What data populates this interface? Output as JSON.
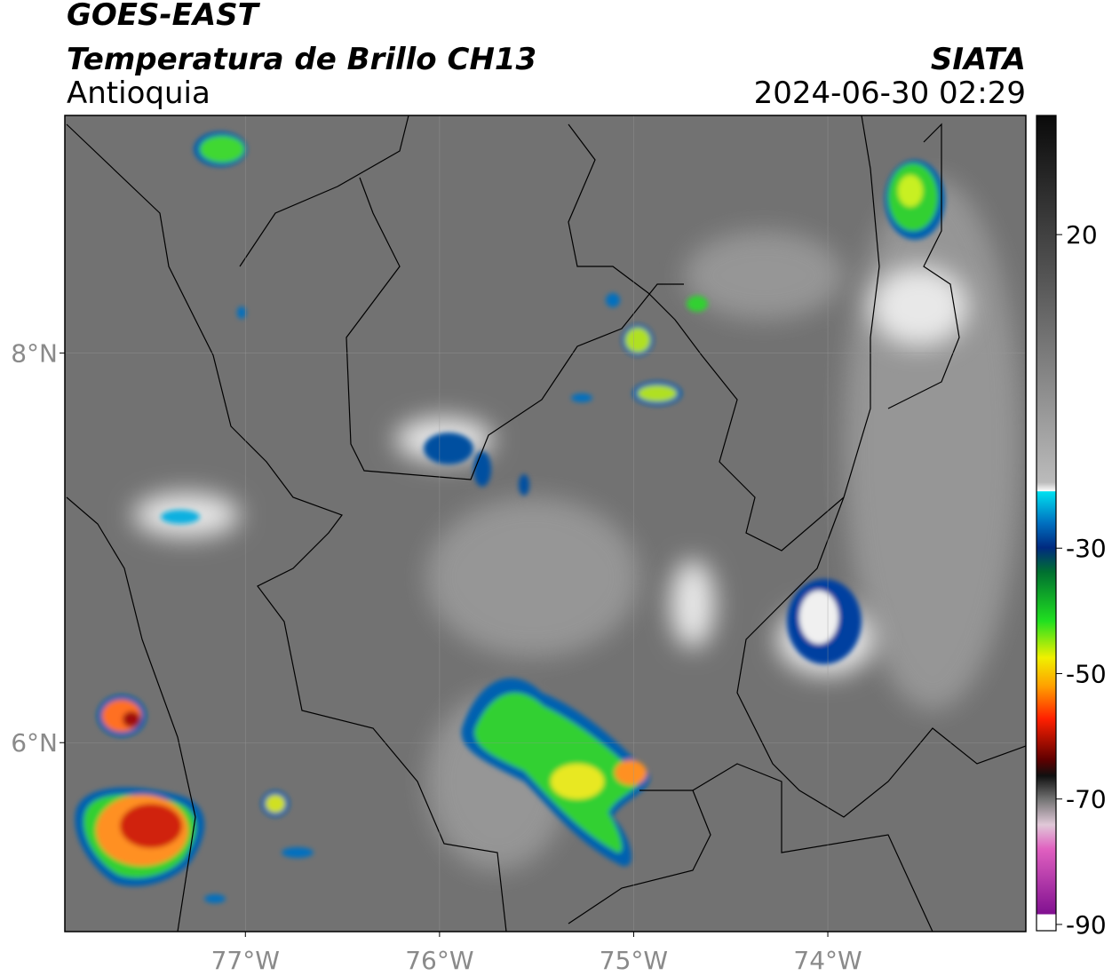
{
  "map": {
    "title": "GOES-EAST",
    "subtitle": "Temperatura de Brillo CH13",
    "region": "Antioquia",
    "source": "SIATA",
    "timestamp": "2024-06-30 02:29",
    "xlim": [
      -77.93,
      -72.98
    ],
    "ylim": [
      5.03,
      9.22
    ],
    "xticks": [
      {
        "value": -77,
        "label": "77°W"
      },
      {
        "value": -76,
        "label": "76°W"
      },
      {
        "value": -75,
        "label": "75°W"
      },
      {
        "value": -74,
        "label": "74°W"
      }
    ],
    "yticks": [
      {
        "value": 6,
        "label": "6°N"
      },
      {
        "value": 8,
        "label": "8°N"
      }
    ],
    "grid": true,
    "colorbar": {
      "lim": [
        -91,
        39
      ],
      "ticks": [
        20,
        -30,
        -50,
        -70,
        -90
      ]
    }
  }
}
